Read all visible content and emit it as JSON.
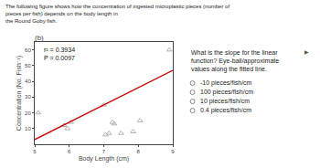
{
  "chart_data": {
    "type": "scatter",
    "title": "(b)",
    "subtitle": "The following figure shows how the concentration of ingested microplastic pieces (number of pieces per fish) depends on the body length in\nthe Round Goby fish.",
    "xlabel": "Body Length (cm)",
    "ylabel": "Concentration (No. Fish⁻¹)",
    "annotations": [
      "r² = 0.3934\nP = 0.0097"
    ],
    "question": {
      "text": "What is the slope for the linear function? Eye-ball/approximate values along the fitted line.",
      "bullet": "▶",
      "options": [
        "-10 pieces/fish/cm",
        "100 pieces/fish/cm",
        "10 pieces/fish/cm",
        "0.4 pieces/fish/cm"
      ]
    },
    "xlim": [
      5,
      9
    ],
    "ylim": [
      0,
      65
    ],
    "xticks": [
      5,
      6,
      7,
      8,
      9
    ],
    "yticks": [
      10,
      20,
      30,
      40,
      50,
      60
    ],
    "grid": false,
    "series": [
      {
        "type": "scatter",
        "marker": "triangle",
        "color": "#b0b0b0",
        "x": [
          5.1,
          5.85,
          5.95,
          6.05,
          7.0,
          7.05,
          7.15,
          7.25,
          7.3,
          7.5,
          7.85,
          8.05,
          8.9
        ],
        "values": [
          20,
          12,
          10,
          14,
          25,
          6,
          7,
          14,
          13,
          7,
          8,
          15,
          60
        ]
      },
      {
        "type": "line",
        "color": "#cc0000",
        "x": [
          5,
          9
        ],
        "values": [
          3,
          47
        ]
      }
    ]
  }
}
